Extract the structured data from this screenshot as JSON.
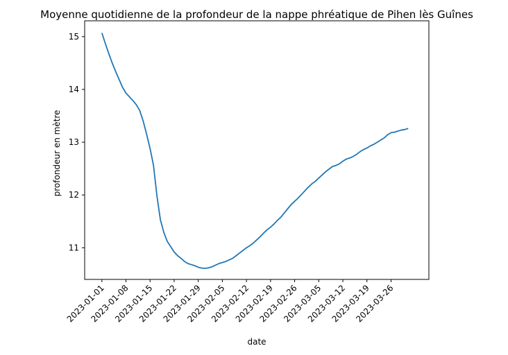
{
  "chart_data": {
    "type": "line",
    "title": "Moyenne quotidienne de la profondeur de la nappe phréatique de Pihen lès Guînes",
    "xlabel": "date",
    "ylabel": "profondeur en mètre",
    "x_tick_labels": [
      "2023-01-01",
      "2023-01-08",
      "2023-01-15",
      "2023-01-22",
      "2023-01-29",
      "2023-02-05",
      "2023-02-12",
      "2023-02-19",
      "2023-02-26",
      "2023-03-05",
      "2023-03-12",
      "2023-03-19",
      "2023-03-26"
    ],
    "y_ticks": [
      11,
      12,
      13,
      14,
      15
    ],
    "xlim": [
      "2022-12-27",
      "2023-04-06"
    ],
    "ylim": [
      10.4,
      15.3
    ],
    "grid": false,
    "series_color": "#1f77b4",
    "x": [
      "2023-01-01",
      "2023-01-02",
      "2023-01-03",
      "2023-01-04",
      "2023-01-05",
      "2023-01-06",
      "2023-01-07",
      "2023-01-08",
      "2023-01-09",
      "2023-01-10",
      "2023-01-11",
      "2023-01-12",
      "2023-01-13",
      "2023-01-14",
      "2023-01-15",
      "2023-01-16",
      "2023-01-17",
      "2023-01-18",
      "2023-01-19",
      "2023-01-20",
      "2023-01-21",
      "2023-01-22",
      "2023-01-23",
      "2023-01-24",
      "2023-01-25",
      "2023-01-26",
      "2023-01-27",
      "2023-01-28",
      "2023-01-29",
      "2023-01-30",
      "2023-01-31",
      "2023-02-01",
      "2023-02-02",
      "2023-02-03",
      "2023-02-04",
      "2023-02-05",
      "2023-02-06",
      "2023-02-07",
      "2023-02-08",
      "2023-02-09",
      "2023-02-10",
      "2023-02-11",
      "2023-02-12",
      "2023-02-13",
      "2023-02-14",
      "2023-02-15",
      "2023-02-16",
      "2023-02-17",
      "2023-02-18",
      "2023-02-19",
      "2023-02-20",
      "2023-02-21",
      "2023-02-22",
      "2023-02-23",
      "2023-02-24",
      "2023-02-25",
      "2023-02-26",
      "2023-02-27",
      "2023-02-28",
      "2023-03-01",
      "2023-03-02",
      "2023-03-03",
      "2023-03-04",
      "2023-03-05",
      "2023-03-06",
      "2023-03-07",
      "2023-03-08",
      "2023-03-09",
      "2023-03-10",
      "2023-03-11",
      "2023-03-12",
      "2023-03-13",
      "2023-03-14",
      "2023-03-15",
      "2023-03-16",
      "2023-03-17",
      "2023-03-18",
      "2023-03-19",
      "2023-03-20",
      "2023-03-21",
      "2023-03-22",
      "2023-03-23",
      "2023-03-24",
      "2023-03-25",
      "2023-03-26",
      "2023-03-27",
      "2023-03-28",
      "2023-03-29",
      "2023-03-30",
      "2023-03-31"
    ],
    "values": [
      15.07,
      14.87,
      14.68,
      14.5,
      14.34,
      14.19,
      14.04,
      13.93,
      13.86,
      13.79,
      13.71,
      13.6,
      13.4,
      13.15,
      12.88,
      12.56,
      11.98,
      11.53,
      11.29,
      11.12,
      11.02,
      10.92,
      10.85,
      10.8,
      10.74,
      10.7,
      10.68,
      10.66,
      10.63,
      10.615,
      10.61,
      10.62,
      10.64,
      10.67,
      10.7,
      10.72,
      10.74,
      10.77,
      10.8,
      10.85,
      10.9,
      10.95,
      11.0,
      11.04,
      11.09,
      11.15,
      11.21,
      11.28,
      11.34,
      11.39,
      11.45,
      11.52,
      11.58,
      11.66,
      11.74,
      11.82,
      11.88,
      11.94,
      12.01,
      12.08,
      12.15,
      12.21,
      12.26,
      12.32,
      12.38,
      12.44,
      12.49,
      12.54,
      12.56,
      12.59,
      12.64,
      12.68,
      12.7,
      12.73,
      12.77,
      12.82,
      12.86,
      12.89,
      12.93,
      12.96,
      13.0,
      13.04,
      13.08,
      13.14,
      13.18,
      13.19,
      13.21,
      13.23,
      13.24,
      13.26
    ]
  }
}
